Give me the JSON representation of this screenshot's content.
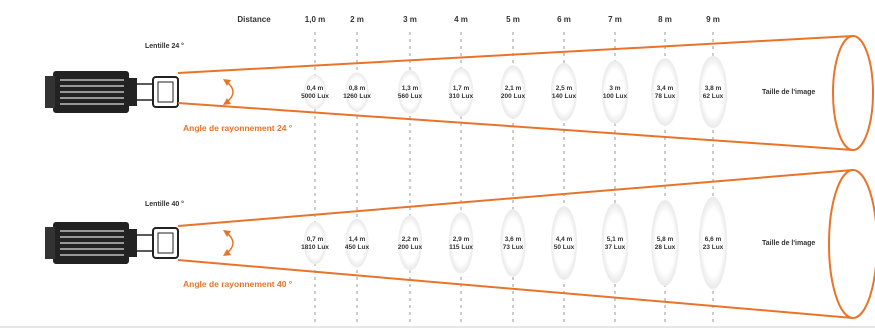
{
  "header": {
    "distance_label": "Distance",
    "distances": [
      "1,0 m",
      "2 m",
      "3 m",
      "4 m",
      "5 m",
      "6 m",
      "7 m",
      "8 m",
      "9 m"
    ]
  },
  "colors": {
    "accent": "#e8742a",
    "text": "#333333",
    "divider": "#999999",
    "spot": "#e9e9e9"
  },
  "icons": [
    "projector-icon",
    "lens-icon",
    "angle-arrow-icon"
  ],
  "beams": [
    {
      "lens_label": "Lentille 24 °",
      "angle_label": "Angle de rayonnement 24 °",
      "end_label": "Taille de l'image",
      "spots": [
        {
          "size": "0,4 m",
          "lux": "5000 Lux"
        },
        {
          "size": "0,8 m",
          "lux": "1260 Lux"
        },
        {
          "size": "1,3 m",
          "lux": "560 Lux"
        },
        {
          "size": "1,7 m",
          "lux": "310 Lux"
        },
        {
          "size": "2,1 m",
          "lux": "200 Lux"
        },
        {
          "size": "2,5 m",
          "lux": "140 Lux"
        },
        {
          "size": "3 m",
          "lux": "100 Lux"
        },
        {
          "size": "3,4 m",
          "lux": "78 Lux"
        },
        {
          "size": "3,8 m",
          "lux": "62 Lux"
        }
      ]
    },
    {
      "lens_label": "Lentille 40 °",
      "angle_label": "Angle de rayonnement 40 °",
      "end_label": "Taille de l'image",
      "spots": [
        {
          "size": "0,7 m",
          "lux": "1810 Lux"
        },
        {
          "size": "1,4 m",
          "lux": "450 Lux"
        },
        {
          "size": "2,2 m",
          "lux": "200 Lux"
        },
        {
          "size": "2,9 m",
          "lux": "115 Lux"
        },
        {
          "size": "3,6 m",
          "lux": "73 Lux"
        },
        {
          "size": "4,4 m",
          "lux": "50 Lux"
        },
        {
          "size": "5,1 m",
          "lux": "37 Lux"
        },
        {
          "size": "5,8 m",
          "lux": "28 Lux"
        },
        {
          "size": "6,6 m",
          "lux": "23 Lux"
        }
      ]
    }
  ]
}
